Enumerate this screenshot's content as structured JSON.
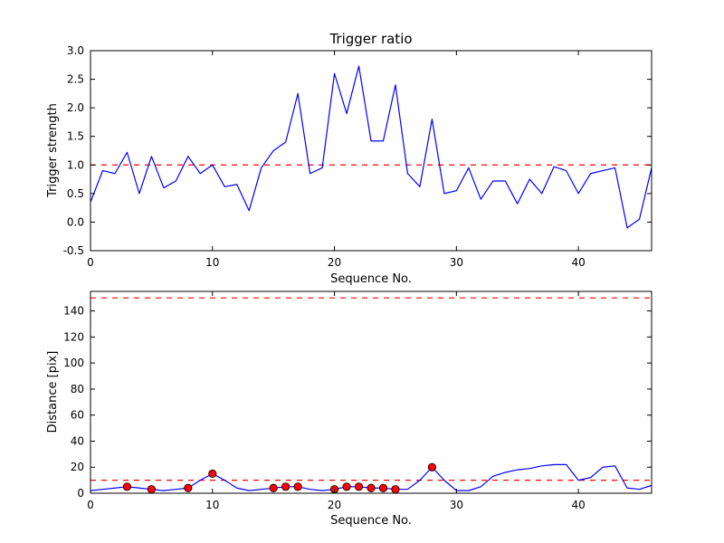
{
  "figure": {
    "background": "#ffffff",
    "line_color": "#0000ff",
    "threshold_color": "#ff0000",
    "marker_face": "#ff0000",
    "marker_edge": "#000000",
    "frame_color": "#000000"
  },
  "chart_data": [
    {
      "type": "line",
      "title": "Trigger ratio",
      "xlabel": "Sequence No.",
      "ylabel": "Trigger strength",
      "xlim": [
        0,
        46
      ],
      "ylim": [
        -0.5,
        3.0
      ],
      "xticks": [
        0,
        10,
        20,
        30,
        40
      ],
      "xticklabels": [
        "0",
        "10",
        "20",
        "30",
        "40"
      ],
      "yticks": [
        -0.5,
        0.0,
        0.5,
        1.0,
        1.5,
        2.0,
        2.5,
        3.0
      ],
      "yticklabels": [
        "-0.5",
        "0.0",
        "0.5",
        "1.0",
        "1.5",
        "2.0",
        "2.5",
        "3.0"
      ],
      "grid": false,
      "legend": null,
      "threshold_lines": [
        1.0
      ],
      "x": [
        0,
        1,
        2,
        3,
        4,
        5,
        6,
        7,
        8,
        9,
        10,
        11,
        12,
        13,
        14,
        15,
        16,
        17,
        18,
        19,
        20,
        21,
        22,
        23,
        24,
        25,
        26,
        27,
        28,
        29,
        30,
        31,
        32,
        33,
        34,
        35,
        36,
        37,
        38,
        39,
        40,
        41,
        42,
        43,
        44,
        45,
        46
      ],
      "y": [
        0.35,
        0.9,
        0.85,
        1.22,
        0.5,
        1.15,
        0.6,
        0.72,
        1.15,
        0.85,
        1.0,
        0.62,
        0.66,
        0.2,
        0.95,
        1.25,
        1.4,
        2.25,
        0.85,
        0.95,
        2.6,
        1.9,
        2.73,
        1.42,
        1.42,
        2.4,
        0.85,
        0.62,
        1.8,
        0.5,
        0.55,
        0.95,
        0.4,
        0.72,
        0.72,
        0.32,
        0.75,
        0.5,
        0.97,
        0.9,
        0.5,
        0.85,
        0.9,
        0.95,
        -0.1,
        0.05,
        0.95
      ]
    },
    {
      "type": "line",
      "title": "",
      "xlabel": "Sequence No.",
      "ylabel": "Distance [pix]",
      "xlim": [
        0,
        46
      ],
      "ylim": [
        0,
        155
      ],
      "xticks": [
        0,
        10,
        20,
        30,
        40
      ],
      "xticklabels": [
        "0",
        "10",
        "20",
        "30",
        "40"
      ],
      "yticks": [
        0,
        20,
        40,
        60,
        80,
        100,
        120,
        140
      ],
      "yticklabels": [
        "0",
        "20",
        "40",
        "60",
        "80",
        "100",
        "120",
        "140"
      ],
      "grid": false,
      "legend": null,
      "threshold_lines": [
        150,
        10
      ],
      "x": [
        0,
        1,
        2,
        3,
        4,
        5,
        6,
        7,
        8,
        9,
        10,
        11,
        12,
        13,
        14,
        15,
        16,
        17,
        18,
        19,
        20,
        21,
        22,
        23,
        24,
        25,
        26,
        27,
        28,
        29,
        30,
        31,
        32,
        33,
        34,
        35,
        36,
        37,
        38,
        39,
        40,
        41,
        42,
        43,
        44,
        45,
        46
      ],
      "y": [
        2,
        3,
        4,
        5,
        4,
        3,
        2,
        3,
        4,
        10,
        15,
        10,
        4,
        2,
        3,
        4,
        5,
        5,
        3,
        2,
        3,
        5,
        5,
        4,
        4,
        3,
        3,
        10,
        20,
        10,
        2,
        2,
        5,
        13,
        16,
        18,
        19,
        21,
        22,
        22,
        10,
        12,
        20,
        21,
        4,
        3,
        6
      ],
      "markers": {
        "x": [
          3,
          5,
          8,
          10,
          15,
          16,
          17,
          20,
          21,
          22,
          23,
          24,
          25,
          28
        ],
        "y": [
          5,
          3,
          4,
          15,
          4,
          5,
          5,
          3,
          5,
          5,
          4,
          4,
          3,
          20
        ]
      }
    }
  ]
}
